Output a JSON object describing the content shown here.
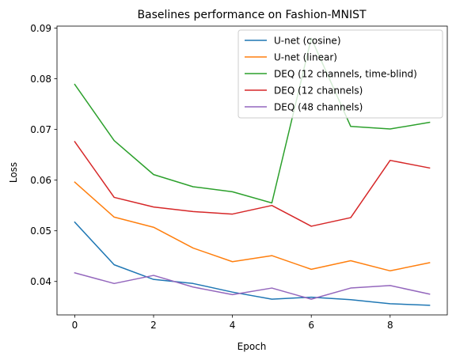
{
  "chart_data": {
    "type": "line",
    "title": "Baselines performance on Fashion-MNIST",
    "xlabel": "Epoch",
    "ylabel": "Loss",
    "xlim": [
      -0.45,
      9.45
    ],
    "ylim": [
      0.0334,
      0.0904
    ],
    "xticks": [
      0,
      2,
      4,
      6,
      8
    ],
    "yticks": [
      0.04,
      0.05,
      0.06,
      0.07,
      0.08,
      0.09
    ],
    "ytick_labels": [
      "0.04",
      "0.05",
      "0.06",
      "0.07",
      "0.08",
      "0.09"
    ],
    "xtick_labels": [
      "0",
      "2",
      "4",
      "6",
      "8"
    ],
    "grid": false,
    "legend_position": "top-right",
    "x": [
      0,
      1,
      2,
      3,
      4,
      5,
      6,
      7,
      8,
      9
    ],
    "series": [
      {
        "name": "U-net (cosine)",
        "color": "#1f77b4",
        "values": [
          0.0517,
          0.0433,
          0.0404,
          0.0396,
          0.0379,
          0.0365,
          0.0369,
          0.0364,
          0.0356,
          0.0353
        ]
      },
      {
        "name": "U-net (linear)",
        "color": "#ff7f0e",
        "values": [
          0.0596,
          0.0527,
          0.0507,
          0.0466,
          0.0439,
          0.0451,
          0.0424,
          0.0441,
          0.0421,
          0.0437
        ]
      },
      {
        "name": "DEQ (12 channels, time-blind)",
        "color": "#2ca02c",
        "values": [
          0.0789,
          0.0678,
          0.0611,
          0.0587,
          0.0577,
          0.0555,
          0.088,
          0.0706,
          0.0701,
          0.0714
        ]
      },
      {
        "name": "DEQ (12 channels)",
        "color": "#d62728",
        "values": [
          0.0676,
          0.0566,
          0.0547,
          0.0538,
          0.0533,
          0.055,
          0.0509,
          0.0526,
          0.0639,
          0.0624
        ]
      },
      {
        "name": "DEQ (48 channels)",
        "color": "#9467bd",
        "values": [
          0.0417,
          0.0396,
          0.0412,
          0.0389,
          0.0374,
          0.0387,
          0.0365,
          0.0387,
          0.0392,
          0.0375
        ]
      }
    ]
  }
}
